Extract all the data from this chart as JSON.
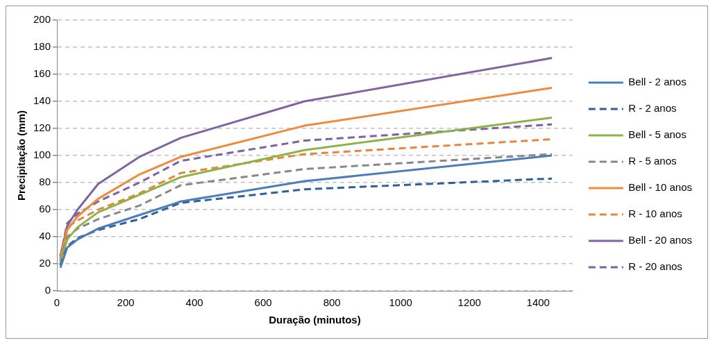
{
  "chart_data": {
    "type": "line",
    "xlabel": "Duração (minutos)",
    "ylabel": "Precipitação (mm)",
    "x": [
      10,
      30,
      60,
      120,
      240,
      360,
      720,
      1440
    ],
    "xlim": [
      0,
      1500
    ],
    "xticks": [
      0,
      200,
      400,
      600,
      800,
      1000,
      1200,
      1400
    ],
    "ylim": [
      0,
      200
    ],
    "yticks": [
      0,
      20,
      40,
      60,
      80,
      100,
      120,
      140,
      160,
      180,
      200
    ],
    "grid": "y",
    "legend": "right",
    "marker": "none",
    "series": [
      {
        "name": "Bell - 2 anos",
        "color": "#4a7ebb",
        "line_style": "solid",
        "values": [
          17,
          32,
          38,
          46,
          56,
          66,
          81,
          100
        ]
      },
      {
        "name": "R - 2 anos",
        "color": "#2f5f98",
        "line_style": "dashed",
        "values": [
          19,
          33,
          39,
          45,
          53,
          65,
          75,
          83
        ]
      },
      {
        "name": "Bell - 5 anos",
        "color": "#8cb34a",
        "line_style": "solid",
        "values": [
          21,
          38,
          47,
          58,
          71,
          84,
          104,
          128
        ]
      },
      {
        "name": "R - 5 anos",
        "color": "#888888",
        "line_style": "dashed",
        "values": [
          22,
          40,
          46,
          53,
          63,
          78,
          90,
          101
        ]
      },
      {
        "name": "Bell - 10 anos",
        "color": "#ed8b3c",
        "line_style": "solid",
        "values": [
          23,
          45,
          55,
          68,
          86,
          99,
          122,
          150
        ]
      },
      {
        "name": "R - 10 anos",
        "color": "#e8853a",
        "line_style": "dashed",
        "values": [
          24,
          47,
          52,
          60,
          72,
          87,
          101,
          112
        ]
      },
      {
        "name": "Bell - 20 anos",
        "color": "#8064a2",
        "line_style": "solid",
        "values": [
          26,
          48,
          60,
          79,
          99,
          113,
          140,
          172
        ]
      },
      {
        "name": "R - 20 anos",
        "color": "#7f5fa6",
        "line_style": "dashed",
        "values": [
          25,
          50,
          57,
          66,
          80,
          96,
          111,
          123
        ]
      }
    ]
  }
}
